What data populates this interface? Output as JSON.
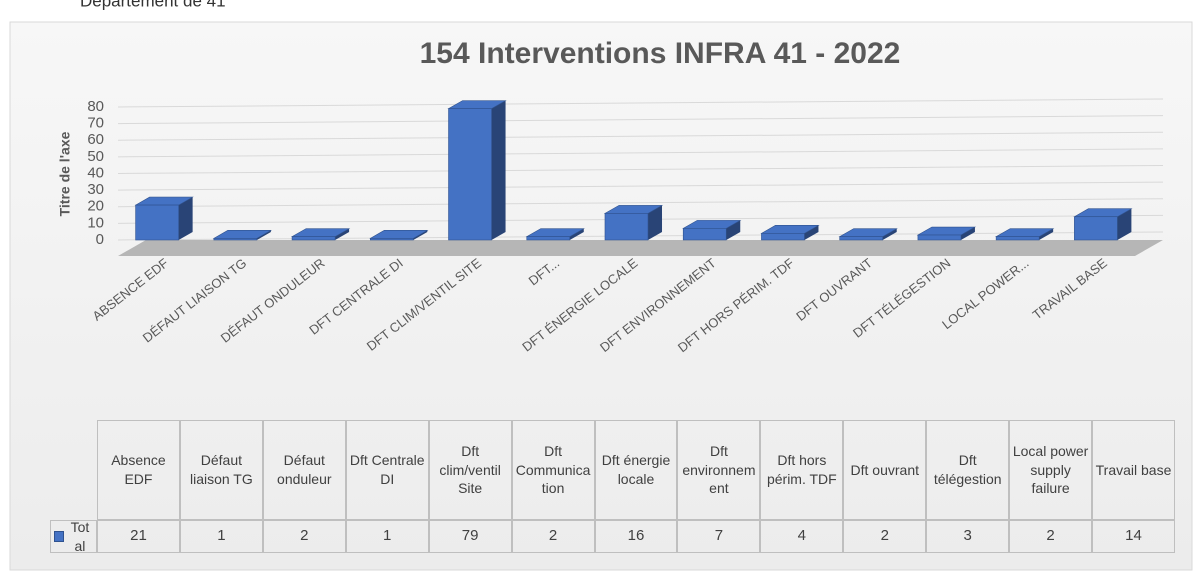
{
  "page_note": "Département de 41",
  "chart_data": {
    "type": "bar",
    "title": "154 Interventions INFRA 41 - 2022",
    "y_label": "Titre de l'axe",
    "categories": [
      "ABSENCE EDF",
      "DÉFAUT LIAISON TG",
      "DÉFAUT ONDULEUR",
      "DFT CENTRALE DI",
      "DFT CLIM/VENTIL SITE",
      "DFT...",
      "DFT ÉNERGIE LOCALE",
      "DFT ENVIRONNEMENT",
      "DFT HORS PÉRIM. TDF",
      "DFT OUVRANT",
      "DFT TÉLÉGESTION",
      "LOCAL POWER...",
      "TRAVAIL BASE"
    ],
    "table_headers": [
      "Absence EDF",
      "Défaut liaison TG",
      "Défaut onduleur",
      "Dft Centrale DI",
      "Dft clim/ventil Site",
      "Dft Communication",
      "Dft énergie locale",
      "Dft environnement",
      "Dft hors périm. TDF",
      "Dft ouvrant",
      "Dft télégestion",
      "Local power supply failure",
      "Travail base"
    ],
    "series": [
      {
        "name": "Total",
        "color": "#4472c4",
        "values": [
          21,
          1,
          2,
          1,
          79,
          2,
          16,
          7,
          4,
          2,
          3,
          2,
          14
        ]
      }
    ],
    "ylim": [
      0,
      80
    ],
    "yticks": [
      0,
      10,
      20,
      30,
      40,
      50,
      60,
      70,
      80
    ],
    "grid": true
  }
}
